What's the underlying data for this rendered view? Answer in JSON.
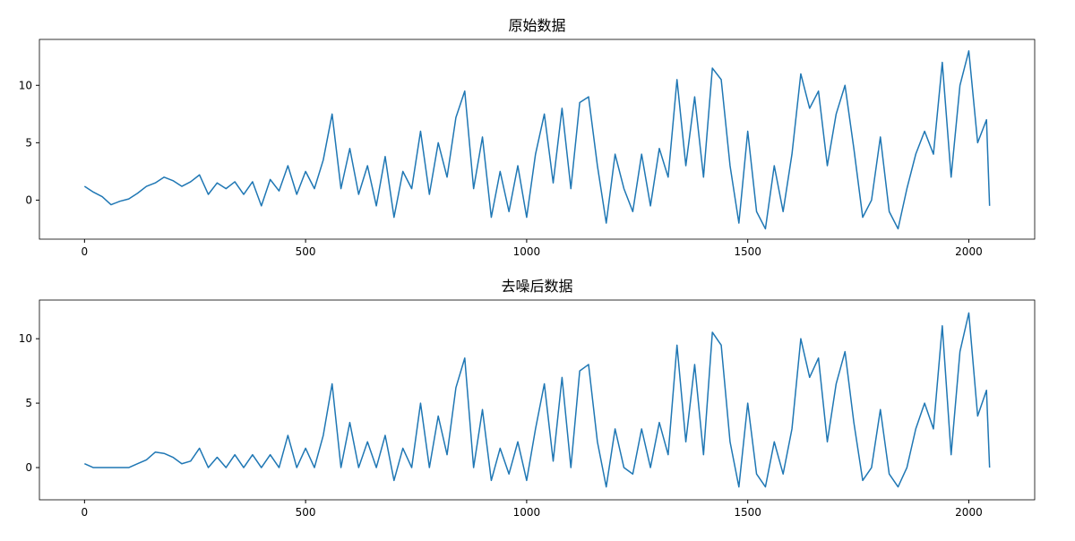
{
  "chart_data": [
    {
      "type": "line",
      "title": "原始数据",
      "x": [
        0,
        20,
        40,
        60,
        80,
        100,
        120,
        140,
        160,
        180,
        200,
        220,
        240,
        260,
        280,
        300,
        320,
        340,
        360,
        380,
        400,
        420,
        440,
        460,
        480,
        500,
        520,
        540,
        560,
        580,
        600,
        620,
        640,
        660,
        680,
        700,
        720,
        740,
        760,
        780,
        800,
        820,
        840,
        860,
        880,
        900,
        920,
        940,
        960,
        980,
        1000,
        1020,
        1040,
        1060,
        1080,
        1100,
        1120,
        1140,
        1160,
        1180,
        1200,
        1220,
        1240,
        1260,
        1280,
        1300,
        1320,
        1340,
        1360,
        1380,
        1400,
        1420,
        1440,
        1460,
        1480,
        1500,
        1520,
        1540,
        1560,
        1580,
        1600,
        1620,
        1640,
        1660,
        1680,
        1700,
        1720,
        1740,
        1760,
        1780,
        1800,
        1820,
        1840,
        1860,
        1880,
        1900,
        1920,
        1940,
        1960,
        1980,
        2000,
        2020,
        2040,
        2047
      ],
      "series": [
        {
          "color": "#1f77b4",
          "values": [
            1.2,
            0.7,
            0.3,
            -0.4,
            -0.1,
            0.1,
            0.6,
            1.2,
            1.5,
            2.0,
            1.7,
            1.2,
            1.6,
            2.2,
            0.5,
            1.5,
            1.0,
            1.6,
            0.5,
            1.6,
            -0.5,
            1.8,
            0.8,
            3.0,
            0.5,
            2.5,
            1.0,
            3.5,
            7.5,
            1.0,
            4.5,
            0.5,
            3.0,
            -0.5,
            3.8,
            -1.5,
            2.5,
            1.0,
            6.0,
            0.5,
            5.0,
            2.0,
            7.2,
            9.5,
            1.0,
            5.5,
            -1.5,
            2.5,
            -1.0,
            3.0,
            -1.5,
            4.0,
            7.5,
            1.5,
            8.0,
            1.0,
            8.5,
            9.0,
            3.0,
            -2.0,
            4.0,
            1.0,
            -1.0,
            4.0,
            -0.5,
            4.5,
            2.0,
            10.5,
            3.0,
            9.0,
            2.0,
            11.5,
            10.5,
            3.0,
            -2.0,
            6.0,
            -1.0,
            -2.5,
            3.0,
            -1.0,
            4.0,
            11.0,
            8.0,
            9.5,
            3.0,
            7.5,
            10.0,
            4.5,
            -1.5,
            0.0,
            5.5,
            -1.0,
            -2.5,
            1.0,
            4.0,
            6.0,
            4.0,
            12.0,
            2.0,
            10.0,
            13.0,
            5.0,
            7.0,
            -0.5
          ]
        }
      ],
      "xlim": [
        -102,
        2149
      ],
      "xticks": [
        0,
        500,
        1000,
        1500,
        2000
      ],
      "ylim": [
        -3.4,
        14.0
      ],
      "yticks": [
        0,
        5,
        10
      ]
    },
    {
      "type": "line",
      "title": "去噪后数据",
      "x": [
        0,
        20,
        40,
        60,
        80,
        100,
        120,
        140,
        160,
        180,
        200,
        220,
        240,
        260,
        280,
        300,
        320,
        340,
        360,
        380,
        400,
        420,
        440,
        460,
        480,
        500,
        520,
        540,
        560,
        580,
        600,
        620,
        640,
        660,
        680,
        700,
        720,
        740,
        760,
        780,
        800,
        820,
        840,
        860,
        880,
        900,
        920,
        940,
        960,
        980,
        1000,
        1020,
        1040,
        1060,
        1080,
        1100,
        1120,
        1140,
        1160,
        1180,
        1200,
        1220,
        1240,
        1260,
        1280,
        1300,
        1320,
        1340,
        1360,
        1380,
        1400,
        1420,
        1440,
        1460,
        1480,
        1500,
        1520,
        1540,
        1560,
        1580,
        1600,
        1620,
        1640,
        1660,
        1680,
        1700,
        1720,
        1740,
        1760,
        1780,
        1800,
        1820,
        1840,
        1860,
        1880,
        1900,
        1920,
        1940,
        1960,
        1980,
        2000,
        2020,
        2040,
        2047
      ],
      "series": [
        {
          "color": "#1f77b4",
          "values": [
            0.3,
            0,
            0,
            0,
            0,
            0,
            0.3,
            0.6,
            1.2,
            1.1,
            0.8,
            0.3,
            0.5,
            1.5,
            0,
            0.8,
            0,
            1.0,
            0,
            1.0,
            0,
            1.0,
            0,
            2.5,
            0,
            1.5,
            0,
            2.5,
            6.5,
            0,
            3.5,
            0,
            2.0,
            0,
            2.5,
            -1.0,
            1.5,
            0,
            5.0,
            0,
            4.0,
            1.0,
            6.2,
            8.5,
            0,
            4.5,
            -1.0,
            1.5,
            -0.5,
            2.0,
            -1.0,
            3.0,
            6.5,
            0.5,
            7.0,
            0,
            7.5,
            8.0,
            2.0,
            -1.5,
            3.0,
            0,
            -0.5,
            3.0,
            0,
            3.5,
            1.0,
            9.5,
            2.0,
            8.0,
            1.0,
            10.5,
            9.5,
            2.0,
            -1.5,
            5.0,
            -0.5,
            -1.5,
            2.0,
            -0.5,
            3.0,
            10.0,
            7.0,
            8.5,
            2.0,
            6.5,
            9.0,
            3.5,
            -1.0,
            0,
            4.5,
            -0.5,
            -1.5,
            0,
            3.0,
            5.0,
            3.0,
            11.0,
            1.0,
            9.0,
            12.0,
            4.0,
            6.0,
            0
          ]
        }
      ],
      "xlim": [
        -102,
        2149
      ],
      "xticks": [
        0,
        500,
        1000,
        1500,
        2000
      ],
      "ylim": [
        -2.5,
        13.0
      ],
      "yticks": [
        0,
        5,
        10
      ]
    }
  ]
}
